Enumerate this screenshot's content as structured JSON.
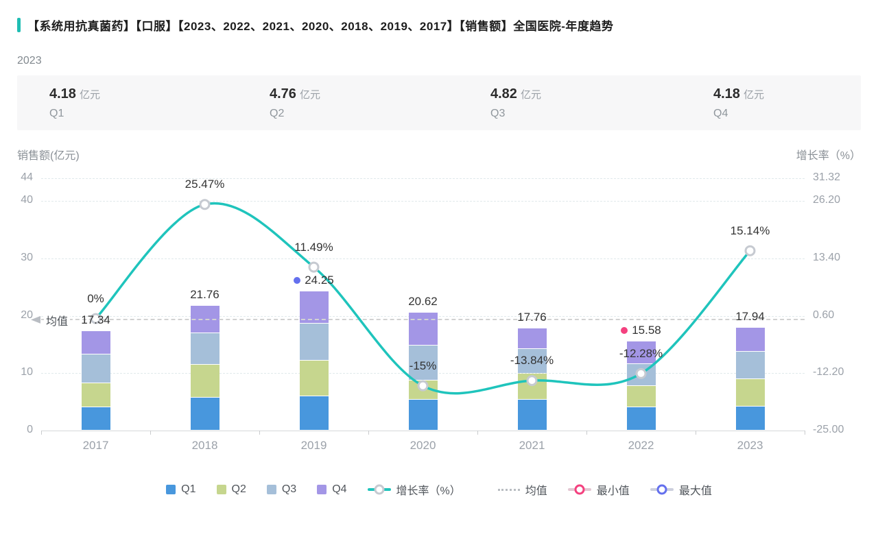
{
  "header": {
    "title": "【系统用抗真菌药】【口服】【2023、2022、2021、2020、2018、2019、2017】【销售额】全国医院-年度趋势",
    "subtitle": "2023",
    "accent_color": "#1fbdb3"
  },
  "stats": {
    "items": [
      {
        "value": "4.18",
        "unit": "亿元",
        "label": "Q1"
      },
      {
        "value": "4.76",
        "unit": "亿元",
        "label": "Q2"
      },
      {
        "value": "4.82",
        "unit": "亿元",
        "label": "Q3"
      },
      {
        "value": "4.18",
        "unit": "亿元",
        "label": "Q4"
      }
    ]
  },
  "chart_data": {
    "type": "bar",
    "subtype": "stacked-bars-with-line",
    "categories": [
      "2017",
      "2018",
      "2019",
      "2020",
      "2021",
      "2022",
      "2023"
    ],
    "series": [
      {
        "name": "Q1",
        "color": "#4897dd",
        "values": [
          4.03,
          5.78,
          5.92,
          5.4,
          5.43,
          4.07,
          4.18
        ]
      },
      {
        "name": "Q2",
        "color": "#c6d68e",
        "values": [
          4.23,
          5.66,
          6.28,
          3.3,
          4.47,
          3.73,
          4.76
        ]
      },
      {
        "name": "Q3",
        "color": "#a5bfd9",
        "values": [
          5.04,
          5.58,
          6.5,
          6.1,
          4.28,
          3.8,
          4.82
        ]
      },
      {
        "name": "Q4",
        "color": "#a396e6",
        "values": [
          4.04,
          4.74,
          5.55,
          5.82,
          3.58,
          3.98,
          4.18
        ]
      }
    ],
    "totals": [
      17.34,
      21.76,
      24.25,
      20.62,
      17.76,
      15.58,
      17.94
    ],
    "total_labels": [
      "17.34",
      "21.76",
      "24.25",
      "20.62",
      "17.76",
      "15.58",
      "17.94"
    ],
    "growth": {
      "name": "增长率（%）",
      "color": "#1fc4bc",
      "values": [
        0,
        25.47,
        11.49,
        -15,
        -13.84,
        -12.28,
        15.14
      ],
      "labels": [
        "0%",
        "25.47%",
        "11.49%",
        "-15%",
        "-13.84%",
        "-12.28%",
        "15.14%"
      ],
      "marker_ring_color": "#c6cad1"
    },
    "left_axis": {
      "title": "销售额(亿元)",
      "tick_labels": [
        "44",
        "40",
        "30",
        "20",
        "10",
        "0"
      ],
      "tick_values": [
        44,
        40,
        30,
        20,
        10,
        0
      ],
      "ylim": [
        0,
        44
      ]
    },
    "right_axis": {
      "title": "增长率（%）",
      "tick_labels": [
        "31.32",
        "26.20",
        "13.40",
        "0.60",
        "-12.20",
        "-25.00"
      ],
      "tick_values": [
        31.32,
        26.2,
        13.4,
        0.6,
        -12.2,
        -25.0
      ],
      "ylim": [
        -25,
        31.32
      ]
    },
    "mean": {
      "label": "均值",
      "value": 19.32
    },
    "min_marker": {
      "label": "最小值",
      "year": "2022",
      "value": 15.58,
      "color": "#f4417f"
    },
    "max_marker": {
      "label": "最大值",
      "year": "2019",
      "value": 24.25,
      "color": "#6470ee"
    },
    "legend": [
      "Q1",
      "Q2",
      "Q3",
      "Q4",
      "增长率（%）",
      "均值",
      "最小值",
      "最大值"
    ],
    "grid": true,
    "legend_position": "bottom"
  }
}
